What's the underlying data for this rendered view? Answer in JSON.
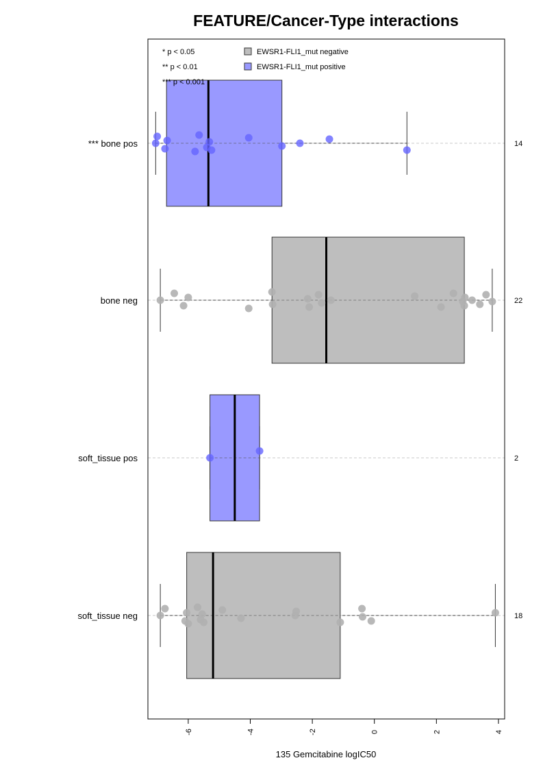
{
  "chart_data": {
    "type": "boxplot",
    "orientation": "horizontal",
    "title": "FEATURE/Cancer-Type interactions",
    "xlabel": "135 Gemcitabine logIC50",
    "ylabel": "",
    "xlim": [
      -7.3,
      4.2
    ],
    "x_ticks": [
      "-6",
      "-4",
      "-2",
      "0",
      "2",
      "4"
    ],
    "grid": false,
    "legend": {
      "position": "top",
      "entries": [
        {
          "label": "EWSR1-FLI1_mut negative",
          "color": "#bebebe"
        },
        {
          "label": "EWSR1-FLI1_mut positive",
          "color": "#9999ff"
        }
      ]
    },
    "significance_key": [
      "* p < 0.05",
      "** p < 0.01",
      "*** p < 0.001"
    ],
    "colors": {
      "negative_box": "#bebebe",
      "positive_box": "#9999ff",
      "negative_point": "#b0b0b0",
      "positive_point": "#6464ff"
    },
    "groups": [
      {
        "label": "*** bone pos",
        "n_label": "14",
        "status": "positive",
        "whisker_low": -7.05,
        "q1": -6.7,
        "median": -5.35,
        "q3": -2.98,
        "whisker_high": 1.05,
        "points": [
          -7.05,
          -7.0,
          -6.75,
          -6.68,
          -5.78,
          -5.65,
          -5.4,
          -5.32,
          -5.25,
          -4.05,
          -2.98,
          -2.4,
          -1.45,
          1.05
        ]
      },
      {
        "label": "bone neg",
        "n_label": "22",
        "status": "negative",
        "whisker_low": -6.9,
        "q1": -3.3,
        "median": -1.55,
        "q3": 2.9,
        "whisker_high": 3.8,
        "points": [
          -6.9,
          -6.45,
          -6.15,
          -6.0,
          -4.05,
          -3.3,
          -3.28,
          -2.15,
          -2.1,
          -1.8,
          -1.7,
          -1.4,
          1.3,
          2.15,
          2.55,
          2.85,
          2.9,
          2.92,
          3.15,
          3.4,
          3.6,
          3.8
        ]
      },
      {
        "label": "soft_tissue pos",
        "n_label": "2",
        "status": "positive",
        "whisker_low": -5.3,
        "q1": -5.3,
        "median": -4.5,
        "q3": -3.7,
        "whisker_high": -3.7,
        "points": [
          -5.3,
          -3.7
        ]
      },
      {
        "label": "soft_tissue neg",
        "n_label": "18",
        "status": "negative",
        "whisker_low": -6.9,
        "q1": -6.05,
        "median": -5.2,
        "q3": -1.1,
        "whisker_high": 3.9,
        "points": [
          -6.9,
          -6.75,
          -6.1,
          -6.05,
          -6.0,
          -5.7,
          -5.6,
          -5.55,
          -5.5,
          -4.9,
          -4.3,
          -2.55,
          -2.52,
          -1.1,
          -0.4,
          -0.38,
          -0.1,
          3.9
        ]
      }
    ]
  }
}
